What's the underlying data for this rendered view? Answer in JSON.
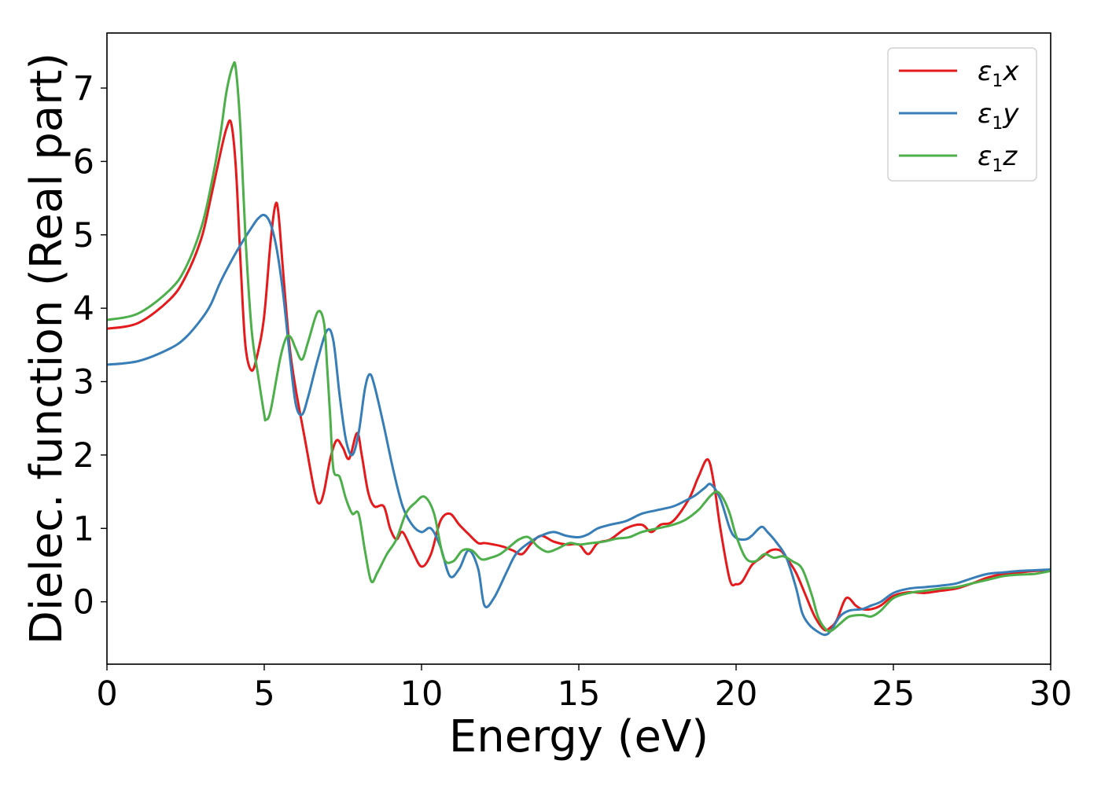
{
  "chart_data": {
    "type": "line",
    "xlabel": "Energy (eV)",
    "ylabel": "Dielec. function (Real part)",
    "xlim": [
      0,
      30
    ],
    "ylim": [
      -0.85,
      7.75
    ],
    "xticks": [
      0,
      5,
      10,
      15,
      20,
      25,
      30
    ],
    "yticks": [
      0,
      1,
      2,
      3,
      4,
      5,
      6,
      7
    ],
    "grid": false,
    "legend_position": "top-right",
    "series": [
      {
        "name": "ε1x",
        "legend_base": "ε",
        "legend_sub": "1",
        "legend_tail": "x",
        "color": "#e41a1c",
        "x": [
          0,
          1,
          2,
          2.5,
          3,
          3.3,
          3.6,
          3.8,
          3.95,
          4.1,
          4.25,
          4.4,
          4.6,
          4.8,
          5.0,
          5.2,
          5.35,
          5.45,
          5.6,
          5.8,
          6.0,
          6.3,
          6.6,
          6.75,
          6.9,
          7.1,
          7.3,
          7.5,
          7.7,
          7.95,
          8.1,
          8.3,
          8.5,
          8.8,
          9.0,
          9.2,
          9.4,
          9.7,
          10.0,
          10.3,
          10.6,
          10.9,
          11.2,
          11.5,
          11.8,
          12.0,
          12.3,
          12.6,
          12.9,
          13.2,
          13.5,
          13.8,
          14.2,
          14.6,
          15.0,
          15.3,
          15.6,
          16.0,
          16.5,
          17.0,
          17.3,
          17.6,
          18.0,
          18.5,
          18.8,
          19.1,
          19.3,
          19.5,
          19.8,
          20.0,
          20.2,
          20.5,
          20.8,
          21.1,
          21.4,
          21.6,
          21.9,
          22.2,
          22.5,
          22.8,
          23.0,
          23.2,
          23.5,
          23.8,
          24.0,
          24.3,
          24.6,
          25.0,
          25.5,
          26.0,
          26.5,
          27.0,
          27.5,
          28.0,
          28.5,
          29.0,
          29.5,
          30.0
        ],
        "y": [
          3.72,
          3.8,
          4.12,
          4.43,
          4.95,
          5.5,
          6.1,
          6.45,
          6.52,
          5.9,
          4.6,
          3.5,
          3.15,
          3.4,
          3.9,
          4.9,
          5.4,
          5.3,
          4.5,
          3.5,
          2.9,
          2.2,
          1.5,
          1.34,
          1.5,
          1.95,
          2.2,
          2.1,
          1.95,
          2.3,
          2.0,
          1.5,
          1.3,
          1.3,
          1.0,
          0.85,
          0.95,
          0.7,
          0.48,
          0.65,
          1.1,
          1.2,
          1.05,
          0.92,
          0.8,
          0.8,
          0.78,
          0.75,
          0.7,
          0.65,
          0.8,
          0.9,
          0.82,
          0.78,
          0.78,
          0.65,
          0.8,
          0.85,
          1.0,
          1.05,
          0.95,
          1.05,
          1.1,
          1.4,
          1.7,
          1.94,
          1.6,
          1.0,
          0.3,
          0.24,
          0.28,
          0.5,
          0.6,
          0.7,
          0.7,
          0.6,
          0.4,
          0.1,
          -0.2,
          -0.38,
          -0.35,
          -0.25,
          0.05,
          -0.05,
          -0.1,
          -0.1,
          -0.05,
          0.08,
          0.13,
          0.12,
          0.15,
          0.18,
          0.25,
          0.33,
          0.38,
          0.4,
          0.42,
          0.43
        ]
      },
      {
        "name": "ε1y",
        "legend_base": "ε",
        "legend_sub": "1",
        "legend_tail": "y",
        "color": "#377eb8",
        "x": [
          0,
          1,
          2,
          2.5,
          3,
          3.3,
          3.6,
          4.0,
          4.3,
          4.6,
          4.8,
          5.0,
          5.2,
          5.4,
          5.6,
          5.8,
          6.0,
          6.2,
          6.4,
          6.7,
          7.0,
          7.2,
          7.4,
          7.6,
          7.8,
          8.0,
          8.2,
          8.35,
          8.5,
          8.8,
          9.1,
          9.4,
          9.7,
          10.0,
          10.3,
          10.6,
          10.9,
          11.2,
          11.5,
          11.8,
          12.0,
          12.3,
          12.7,
          13.0,
          13.4,
          13.8,
          14.2,
          14.6,
          15.0,
          15.3,
          15.6,
          16.0,
          16.5,
          17.0,
          17.5,
          18.0,
          18.4,
          18.7,
          19.0,
          19.2,
          19.5,
          19.8,
          20.0,
          20.3,
          20.5,
          20.8,
          21.0,
          21.3,
          21.6,
          21.9,
          22.1,
          22.3,
          22.5,
          22.8,
          23.0,
          23.3,
          23.6,
          24.0,
          24.3,
          24.6,
          25.0,
          25.5,
          26.0,
          26.5,
          27.0,
          27.5,
          28.0,
          28.5,
          29.0,
          29.5,
          30.0
        ],
        "y": [
          3.23,
          3.28,
          3.45,
          3.6,
          3.85,
          4.05,
          4.35,
          4.68,
          4.9,
          5.1,
          5.22,
          5.27,
          5.15,
          4.8,
          4.2,
          3.4,
          2.7,
          2.55,
          2.8,
          3.3,
          3.7,
          3.55,
          2.8,
          2.2,
          2.0,
          2.3,
          2.9,
          3.1,
          2.95,
          2.4,
          1.8,
          1.3,
          1.05,
          0.95,
          1.0,
          0.75,
          0.35,
          0.45,
          0.7,
          0.45,
          -0.05,
          0.05,
          0.4,
          0.65,
          0.8,
          0.9,
          0.95,
          0.9,
          0.88,
          0.92,
          1.0,
          1.05,
          1.1,
          1.2,
          1.25,
          1.3,
          1.38,
          1.45,
          1.55,
          1.6,
          1.4,
          1.0,
          0.87,
          0.85,
          0.9,
          1.02,
          0.95,
          0.8,
          0.6,
          0.2,
          -0.15,
          -0.3,
          -0.38,
          -0.45,
          -0.4,
          -0.2,
          -0.12,
          -0.1,
          -0.05,
          0.0,
          0.12,
          0.18,
          0.2,
          0.22,
          0.25,
          0.32,
          0.38,
          0.4,
          0.42,
          0.43,
          0.44
        ]
      },
      {
        "name": "ε1z",
        "legend_base": "ε",
        "legend_sub": "1",
        "legend_tail": "z",
        "color": "#4daf4a",
        "x": [
          0,
          1,
          2,
          2.5,
          3,
          3.3,
          3.6,
          3.8,
          4.0,
          4.1,
          4.25,
          4.4,
          4.6,
          4.8,
          5.0,
          5.05,
          5.2,
          5.5,
          5.7,
          5.85,
          6.0,
          6.2,
          6.4,
          6.7,
          6.9,
          7.0,
          7.1,
          7.2,
          7.4,
          7.6,
          7.8,
          8.0,
          8.2,
          8.4,
          8.6,
          8.9,
          9.2,
          9.5,
          9.8,
          10.1,
          10.4,
          10.7,
          11.0,
          11.3,
          11.6,
          11.9,
          12.2,
          12.5,
          12.8,
          13.1,
          13.4,
          13.7,
          14.0,
          14.3,
          14.7,
          15.0,
          15.4,
          15.8,
          16.2,
          16.6,
          17.0,
          17.5,
          18.0,
          18.4,
          18.8,
          19.0,
          19.2,
          19.4,
          19.6,
          19.8,
          20.0,
          20.3,
          20.6,
          20.9,
          21.2,
          21.5,
          21.8,
          22.1,
          22.4,
          22.6,
          22.8,
          23.0,
          23.3,
          23.6,
          24.0,
          24.3,
          24.6,
          25.0,
          25.5,
          26.0,
          26.5,
          27.0,
          27.5,
          28.0,
          28.5,
          29.0,
          29.5,
          30.0
        ],
        "y": [
          3.84,
          3.93,
          4.25,
          4.55,
          5.1,
          5.65,
          6.35,
          6.95,
          7.3,
          7.25,
          6.4,
          5.0,
          3.7,
          3.1,
          2.55,
          2.48,
          2.6,
          3.3,
          3.6,
          3.6,
          3.45,
          3.3,
          3.55,
          3.95,
          3.8,
          3.2,
          2.5,
          1.8,
          1.7,
          1.4,
          1.2,
          1.2,
          0.7,
          0.28,
          0.4,
          0.65,
          0.85,
          1.2,
          1.35,
          1.43,
          1.2,
          0.6,
          0.55,
          0.7,
          0.7,
          0.58,
          0.6,
          0.65,
          0.75,
          0.85,
          0.88,
          0.75,
          0.68,
          0.72,
          0.8,
          0.78,
          0.8,
          0.82,
          0.86,
          0.88,
          0.95,
          1.0,
          1.05,
          1.12,
          1.25,
          1.35,
          1.45,
          1.5,
          1.4,
          1.2,
          0.9,
          0.6,
          0.55,
          0.65,
          0.6,
          0.62,
          0.55,
          0.45,
          0.1,
          -0.2,
          -0.35,
          -0.4,
          -0.3,
          -0.2,
          -0.18,
          -0.2,
          -0.12,
          0.05,
          0.12,
          0.15,
          0.18,
          0.2,
          0.25,
          0.3,
          0.35,
          0.37,
          0.38,
          0.42
        ]
      }
    ]
  }
}
